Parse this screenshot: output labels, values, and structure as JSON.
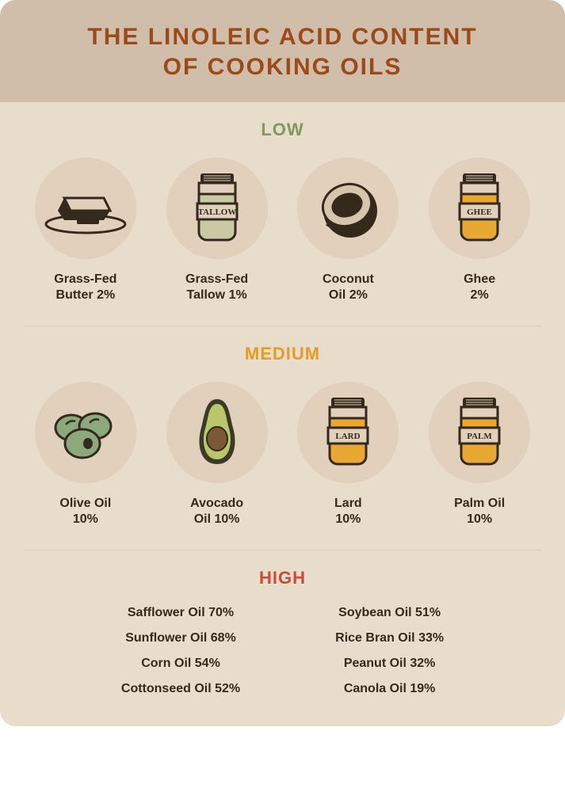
{
  "colors": {
    "header_bg": "#d1beaa",
    "body_bg": "#e8dccb",
    "circle_bg": "#e0d0bc",
    "title": "#9c4a1a",
    "text": "#35291c",
    "low_heading": "#7d9a5f",
    "medium_heading": "#e79a28",
    "high_heading": "#c94b3a",
    "jar_yellow": "#e9a834",
    "jar_tallow": "#c9caa4",
    "olive": "#8ba97c",
    "avocado_skin": "#3b3a28",
    "avocado_flesh": "#b9c66a",
    "avocado_pit": "#7a5a35",
    "outline": "#35291c",
    "coconut_fill": "#d6c5ad"
  },
  "title": {
    "line1": "THE LINOLEIC ACID CONTENT",
    "line2": "OF COOKING OILS"
  },
  "title_fontsize": 30,
  "section_title_fontsize": 22,
  "item_label_fontsize": 16,
  "sections": {
    "low": {
      "heading": "LOW",
      "items": [
        {
          "icon": "butter",
          "label": "Grass-Fed\nButter 2%"
        },
        {
          "icon": "tallow",
          "label": "Grass-Fed\nTallow 1%",
          "jar_text": "TALLOW"
        },
        {
          "icon": "coconut",
          "label": "Coconut\nOil 2%"
        },
        {
          "icon": "ghee",
          "label": "Ghee\n2%",
          "jar_text": "GHEE"
        }
      ]
    },
    "medium": {
      "heading": "MEDIUM",
      "items": [
        {
          "icon": "olive",
          "label": "Olive Oil\n10%"
        },
        {
          "icon": "avocado",
          "label": "Avocado\nOil 10%"
        },
        {
          "icon": "lard",
          "label": "Lard\n10%",
          "jar_text": "LARD"
        },
        {
          "icon": "palm",
          "label": "Palm Oil\n10%",
          "jar_text": "PALM"
        }
      ]
    },
    "high": {
      "heading": "HIGH",
      "col1": [
        "Safflower Oil 70%",
        "Sunflower Oil 68%",
        "Corn Oil 54%",
        "Cottonseed Oil 52%"
      ],
      "col2": [
        "Soybean Oil 51%",
        "Rice Bran Oil 33%",
        "Peanut Oil 32%",
        "Canola Oil 19%"
      ]
    }
  }
}
